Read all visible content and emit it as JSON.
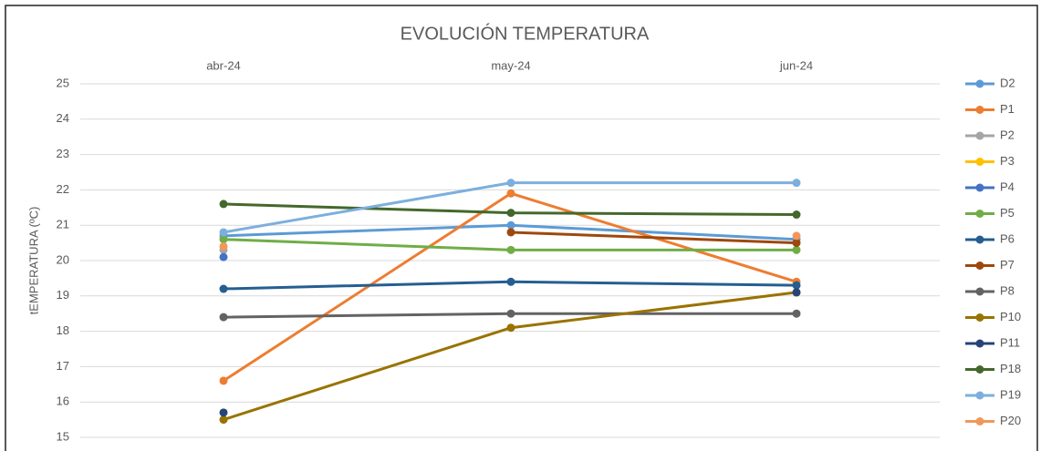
{
  "chart_data": {
    "type": "line",
    "title": "EVOLUCIÓN TEMPERATURA",
    "y_label": "tEMPERATURA (ºC)",
    "categories": [
      "abr-24",
      "may-24",
      "jun-24"
    ],
    "ylim": [
      15,
      25
    ],
    "yticks": [
      15,
      16,
      17,
      18,
      19,
      20,
      21,
      22,
      23,
      24,
      25
    ],
    "grid": true,
    "legend": "right",
    "series": [
      {
        "name": "D2",
        "color": "#5b9bd5",
        "values": [
          20.7,
          21.0,
          20.6
        ]
      },
      {
        "name": "P1",
        "color": "#ed7d31",
        "values": [
          16.6,
          21.9,
          19.4
        ]
      },
      {
        "name": "P2",
        "color": "#a5a5a5",
        "values": [
          20.3,
          null,
          null
        ]
      },
      {
        "name": "P3",
        "color": "#ffc000",
        "values": [
          null,
          null,
          null
        ]
      },
      {
        "name": "P4",
        "color": "#4472c4",
        "values": [
          20.1,
          null,
          null
        ]
      },
      {
        "name": "P5",
        "color": "#70ad47",
        "values": [
          20.6,
          20.3,
          20.3
        ]
      },
      {
        "name": "P6",
        "color": "#255e91",
        "values": [
          19.2,
          19.4,
          19.3
        ]
      },
      {
        "name": "P7",
        "color": "#9e480e",
        "values": [
          null,
          20.8,
          20.5
        ]
      },
      {
        "name": "P8",
        "color": "#636363",
        "values": [
          18.4,
          18.5,
          18.5
        ]
      },
      {
        "name": "P10",
        "color": "#997300",
        "values": [
          15.5,
          18.1,
          19.1
        ]
      },
      {
        "name": "P11",
        "color": "#264478",
        "values": [
          15.7,
          null,
          19.1
        ]
      },
      {
        "name": "P18",
        "color": "#43682b",
        "values": [
          21.6,
          21.35,
          21.3
        ]
      },
      {
        "name": "P19",
        "color": "#7cafdd",
        "values": [
          20.8,
          22.2,
          22.2
        ]
      },
      {
        "name": "P20",
        "color": "#f1975a",
        "values": [
          20.4,
          null,
          20.7
        ]
      }
    ]
  }
}
